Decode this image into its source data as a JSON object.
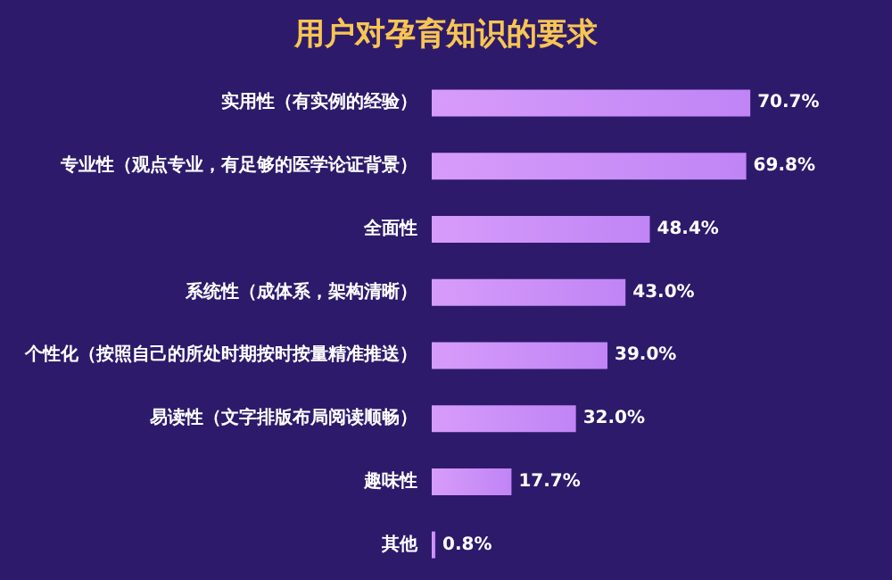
{
  "chart_data": {
    "type": "bar",
    "orientation": "horizontal",
    "title": "用户对孕育知识的要求",
    "categories": [
      "实用性（有实例的经验）",
      "专业性（观点专业，有足够的医学论证背景）",
      "全面性",
      "系统性（成体系，架构清晰）",
      "个性化（按照自己的所处时期按时按量精准推送）",
      "易读性（文字排版布局阅读顺畅）",
      "趣味性",
      "其他"
    ],
    "values": [
      70.7,
      69.8,
      48.4,
      43.0,
      39.0,
      32.0,
      17.7,
      0.8
    ],
    "value_labels": [
      "70.7%",
      "69.8%",
      "48.4%",
      "43.0%",
      "39.0%",
      "32.0%",
      "17.7%",
      "0.8%"
    ],
    "color": "#c084f5"
  }
}
